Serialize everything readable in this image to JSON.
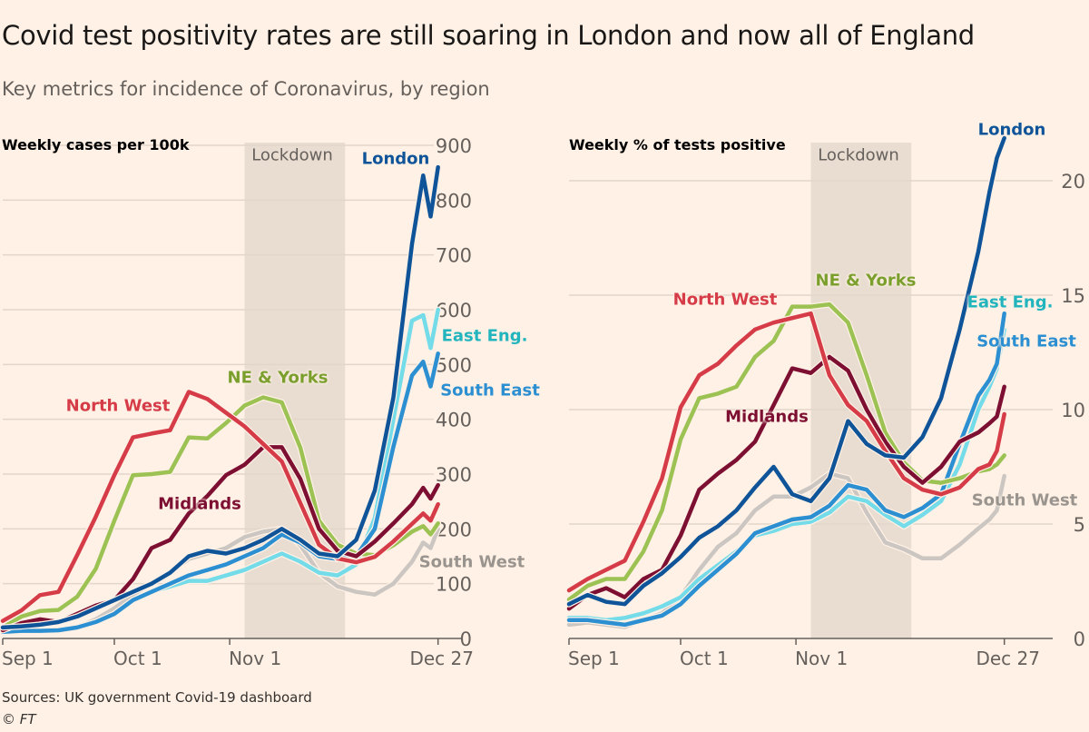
{
  "title": "Covid test positivity rates are still soaring in London and now all of England",
  "subtitle": "Key metrics for incidence of Coronavirus, by region",
  "source": "Sources: UK government Covid-19 dashboard",
  "credit": "© FT",
  "colors": {
    "background": "#fff1e5",
    "lockdown_band": "#e9ddd1",
    "London": "#0f5499",
    "East Eng.": "#74dbe9",
    "South East": "#2b8fd1",
    "North West": "#d63b48",
    "NE & Yorks": "#9cc254",
    "Midlands": "#7d0f32",
    "South West": "#cbc6c1"
  },
  "label_colors": {
    "London": "#0f5499",
    "East Eng.": "#22b5be",
    "South East": "#2b8fd1",
    "North West": "#d63b48",
    "NE & Yorks": "#7a9f2d",
    "Midlands": "#7d0f32",
    "South West": "#9a948f"
  },
  "chart_data": [
    {
      "type": "line",
      "title": "Weekly cases per 100k",
      "annotation": "Lockdown",
      "shaded_range": [
        "Nov 5",
        "Dec 2"
      ],
      "x_ticks": [
        "Sep 1",
        "Oct 1",
        "Nov 1",
        "Dec 27"
      ],
      "y_ticks": [
        "0",
        "100",
        "200",
        "300",
        "400",
        "500",
        "600",
        "700",
        "800",
        "900"
      ],
      "ylim": [
        0,
        900
      ],
      "grid": true,
      "y_axis_side": "right",
      "x": [
        "Sep 1",
        "Sep 6",
        "Sep 11",
        "Sep 16",
        "Sep 21",
        "Sep 26",
        "Oct 1",
        "Oct 6",
        "Oct 11",
        "Oct 16",
        "Oct 21",
        "Oct 26",
        "Oct 31",
        "Nov 5",
        "Nov 10",
        "Nov 15",
        "Nov 20",
        "Nov 25",
        "Nov 30",
        "Dec 5",
        "Dec 10",
        "Dec 15",
        "Dec 20",
        "Dec 23",
        "Dec 25",
        "Dec 27"
      ],
      "series": [
        {
          "name": "South West",
          "values": [
            10,
            12,
            12,
            13,
            20,
            35,
            55,
            80,
            100,
            120,
            145,
            155,
            165,
            185,
            195,
            200,
            170,
            120,
            95,
            85,
            80,
            100,
            140,
            175,
            165,
            200
          ]
        },
        {
          "name": "East Eng.",
          "values": [
            10,
            12,
            12,
            14,
            20,
            30,
            45,
            70,
            85,
            95,
            105,
            105,
            115,
            125,
            140,
            155,
            140,
            120,
            115,
            135,
            220,
            400,
            580,
            590,
            530,
            600
          ]
        },
        {
          "name": "South East",
          "values": [
            12,
            14,
            14,
            15,
            20,
            30,
            45,
            70,
            85,
            100,
            115,
            125,
            135,
            150,
            165,
            190,
            175,
            150,
            145,
            150,
            200,
            350,
            480,
            505,
            460,
            520
          ]
        },
        {
          "name": "NE & Yorks",
          "values": [
            20,
            40,
            50,
            52,
            76,
            127,
            215,
            298,
            300,
            304,
            367,
            365,
            393,
            425,
            440,
            431,
            348,
            215,
            171,
            155,
            152,
            170,
            195,
            205,
            190,
            210
          ]
        },
        {
          "name": "Midlands",
          "values": [
            15,
            28,
            35,
            30,
            45,
            60,
            70,
            108,
            165,
            180,
            228,
            260,
            298,
            317,
            349,
            349,
            291,
            200,
            160,
            150,
            177,
            210,
            245,
            275,
            255,
            280
          ]
        },
        {
          "name": "North West",
          "values": [
            32,
            51,
            79,
            85,
            152,
            222,
            298,
            367,
            374,
            380,
            450,
            437,
            412,
            387,
            355,
            323,
            247,
            171,
            146,
            139,
            149,
            177,
            209,
            228,
            215,
            245
          ]
        },
        {
          "name": "London",
          "values": [
            20,
            22,
            25,
            30,
            40,
            55,
            70,
            85,
            100,
            120,
            150,
            160,
            155,
            165,
            180,
            200,
            180,
            155,
            150,
            180,
            270,
            440,
            720,
            845,
            770,
            860
          ]
        }
      ]
    },
    {
      "type": "line",
      "title": "Weekly % of tests positive",
      "annotation": "Lockdown",
      "shaded_range": [
        "Nov 5",
        "Dec 2"
      ],
      "x_ticks": [
        "Sep 1",
        "Oct 1",
        "Nov 1",
        "Dec 27"
      ],
      "y_ticks": [
        "0",
        "5",
        "10",
        "15",
        "20"
      ],
      "ylim": [
        0,
        22
      ],
      "grid": true,
      "y_axis_side": "right",
      "x": [
        "Sep 1",
        "Sep 6",
        "Sep 11",
        "Sep 16",
        "Sep 21",
        "Sep 26",
        "Oct 1",
        "Oct 6",
        "Oct 11",
        "Oct 16",
        "Oct 21",
        "Oct 26",
        "Oct 31",
        "Nov 5",
        "Nov 10",
        "Nov 15",
        "Nov 20",
        "Nov 25",
        "Nov 30",
        "Dec 5",
        "Dec 10",
        "Dec 15",
        "Dec 20",
        "Dec 23",
        "Dec 25",
        "Dec 27"
      ],
      "series": [
        {
          "name": "South West",
          "values": [
            0.6,
            0.7,
            0.6,
            0.5,
            0.8,
            1.1,
            1.8,
            3.0,
            4.0,
            4.6,
            5.6,
            6.2,
            6.2,
            6.6,
            7.2,
            7.0,
            5.5,
            4.2,
            3.9,
            3.5,
            3.5,
            4.1,
            4.8,
            5.2,
            5.6,
            7.1
          ]
        },
        {
          "name": "East Eng.",
          "values": [
            0.9,
            0.9,
            0.8,
            0.9,
            1.1,
            1.4,
            1.8,
            2.6,
            3.2,
            3.8,
            4.5,
            4.7,
            5.0,
            5.1,
            5.5,
            6.2,
            6.0,
            5.4,
            4.9,
            5.4,
            6.0,
            7.6,
            10.0,
            11.0,
            11.8,
            13.5
          ]
        },
        {
          "name": "South East",
          "values": [
            0.8,
            0.8,
            0.7,
            0.6,
            0.8,
            1.0,
            1.5,
            2.3,
            3.0,
            3.7,
            4.6,
            4.9,
            5.2,
            5.3,
            5.8,
            6.7,
            6.5,
            5.6,
            5.3,
            5.7,
            6.3,
            8.5,
            10.6,
            11.3,
            12.0,
            14.2
          ]
        },
        {
          "name": "NE & Yorks",
          "values": [
            1.7,
            2.3,
            2.6,
            2.6,
            3.8,
            5.6,
            8.7,
            10.5,
            10.7,
            11.0,
            12.3,
            13.0,
            14.5,
            14.5,
            14.6,
            13.8,
            11.5,
            9.0,
            7.7,
            6.9,
            6.8,
            7.0,
            7.3,
            7.4,
            7.6,
            8.0
          ]
        },
        {
          "name": "Midlands",
          "values": [
            1.3,
            1.9,
            2.2,
            1.8,
            2.6,
            3.0,
            4.5,
            6.5,
            7.2,
            7.8,
            8.6,
            10.2,
            11.8,
            11.6,
            12.3,
            11.7,
            10.0,
            8.6,
            7.5,
            6.8,
            7.5,
            8.6,
            9.0,
            9.4,
            9.7,
            11.0
          ]
        },
        {
          "name": "North West",
          "values": [
            2.1,
            2.6,
            3.0,
            3.4,
            5.1,
            7.0,
            10.1,
            11.5,
            12.0,
            12.8,
            13.5,
            13.8,
            14.0,
            14.2,
            11.5,
            10.2,
            9.5,
            8.2,
            7.0,
            6.5,
            6.3,
            6.6,
            7.4,
            7.6,
            8.2,
            9.8
          ]
        },
        {
          "name": "London",
          "values": [
            1.5,
            1.9,
            1.6,
            1.5,
            2.3,
            2.85,
            3.56,
            4.4,
            4.9,
            5.6,
            6.6,
            7.5,
            6.3,
            6.0,
            7.0,
            9.5,
            8.5,
            8.0,
            7.9,
            8.8,
            10.5,
            13.5,
            16.9,
            19.5,
            21.0,
            22.0
          ]
        }
      ]
    }
  ]
}
